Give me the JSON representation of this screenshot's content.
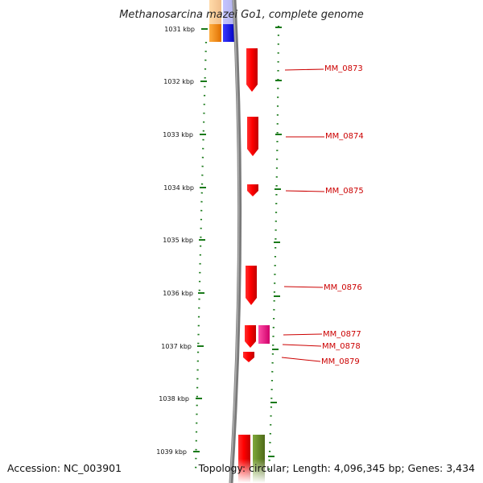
{
  "title": "Methanosarcina mazei Go1, complete genome",
  "footer": {
    "accession": "Accession: NC_003901",
    "topology": "Topology: circular; Length: 4,096,345 bp; Genes: 3,434"
  },
  "ticks": [
    "1031 kbp",
    "1032 kbp",
    "1033 kbp",
    "1034 kbp",
    "1035 kbp",
    "1036 kbp",
    "1037 kbp",
    "1038 kbp",
    "1039 kbp"
  ],
  "genes": [
    "MM_0873",
    "MM_0874",
    "MM_0875",
    "MM_0876",
    "MM_0877",
    "MM_0878",
    "MM_0879"
  ],
  "colors": {
    "tick": "#1a7a1a",
    "gene_red": "#ff1a1a",
    "gene_magenta": "#ff1493",
    "gene_orange": "#ff8c00",
    "gene_blue": "#1a1aff",
    "gene_olive": "#6b8e23",
    "backbone": "#808080",
    "label": "#cc0000"
  }
}
